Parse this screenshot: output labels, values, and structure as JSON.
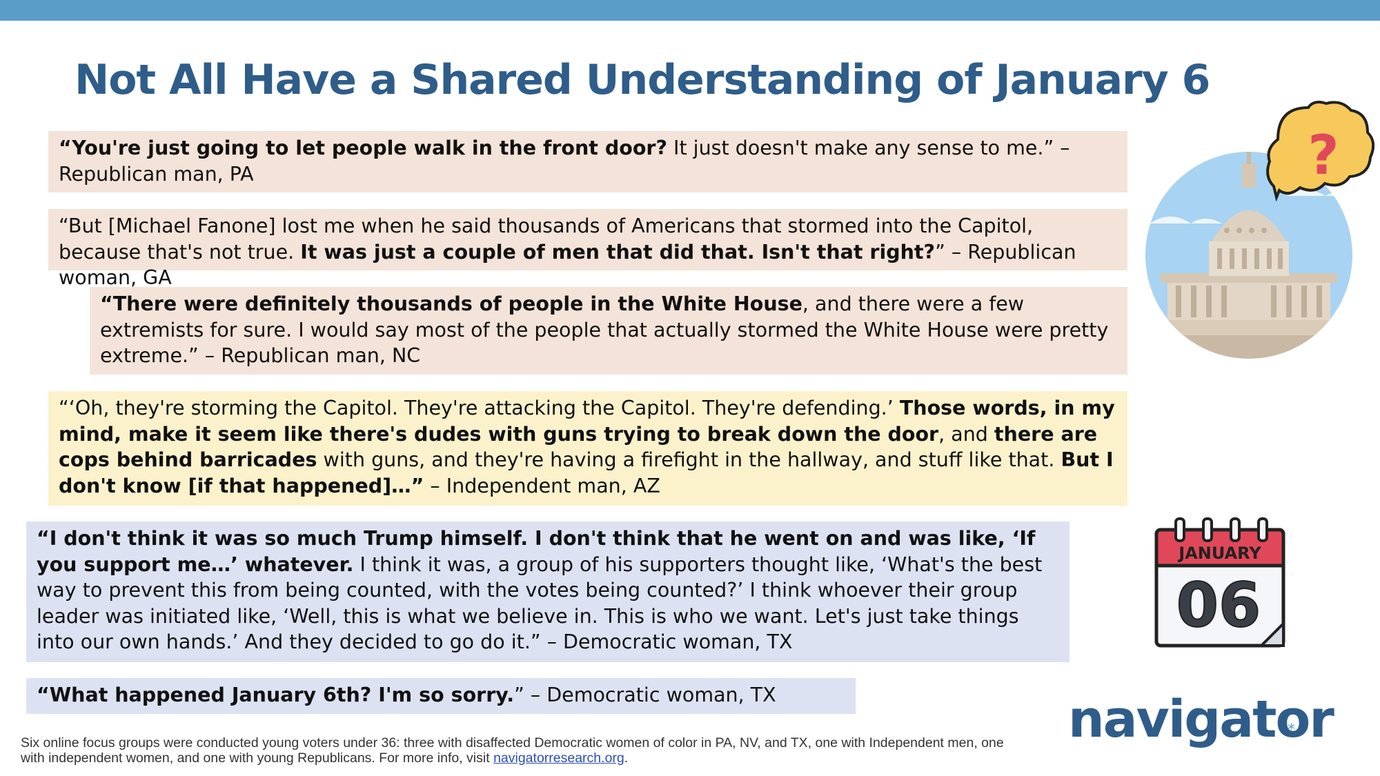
{
  "slide": {
    "title": "Not All Have a Shared Understanding of January 6"
  },
  "quotes": [
    {
      "bold": "“You're just going to let people walk in the front door?",
      "rest": " It just doesn't make any sense to me.” – Republican man, PA"
    },
    {
      "pre": "“But [Michael Fanone] lost me when he said thousands of Americans that stormed into the Capitol, because that's not true. ",
      "bold": "It was just a couple of men that did that. Isn't that right?",
      "rest": "” – Republican woman, GA"
    },
    {
      "bold": "“There were definitely thousands of people in the White House",
      "rest": ", and there were a few extremists for sure. I would say most of the people that actually stormed the White House were pretty extreme.” – Republican man, NC"
    },
    {
      "pre": "“‘Oh, they're storming the Capitol. They're attacking the Capitol. They're defending.’ ",
      "bold1": "Those words, in my mind, make it seem like there's dudes with guns trying to break down the door",
      "mid1": ", and ",
      "bold2": "there are cops behind barricades",
      "mid2": " with guns, and they're having a firefight in the hallway, and stuff like that. ",
      "bold3": "But I don't know [if that happened]…”",
      "rest": " – Independent man, AZ"
    },
    {
      "bold": "“I don't think it was so much Trump himself. I don't think that he went on and was like, ‘If you support me…’ whatever.",
      "rest": " I think it was, a group of his supporters thought like, ‘What's the best way to prevent this from being counted, with the votes being counted?’ I think whoever their group leader was initiated like, ‘Well, this is what we believe in. This is who we want. Let's just take things into our own hands.’ And they decided to go do it.” – Democratic woman, TX"
    },
    {
      "bold": "“What happened January 6th? I'm so sorry.",
      "rest": "” – Democratic woman, TX"
    }
  ],
  "calendar": {
    "month": "JANUARY",
    "day": "06"
  },
  "brand": {
    "name": "navigator",
    "dot": "*"
  },
  "footnote": {
    "text": "Six online focus groups were conducted young voters under 36: three with disaffected Democratic women of color in PA, NV, and TX, one with Independent men, one with independent women, and one with young Republicans. For more info, visit ",
    "link": "navigatorresearch.org",
    "end": "."
  },
  "colors": {
    "accent_bar": "#5b9dc9",
    "title": "#2f5d8a",
    "quote_pink": "#f4e3d8",
    "quote_yellow": "#fbf2cc",
    "quote_blue": "#dde2f2",
    "calendar_red": "#e0485a"
  },
  "icons": [
    "capitol-building-icon",
    "question-bubble-icon",
    "calendar-icon"
  ]
}
